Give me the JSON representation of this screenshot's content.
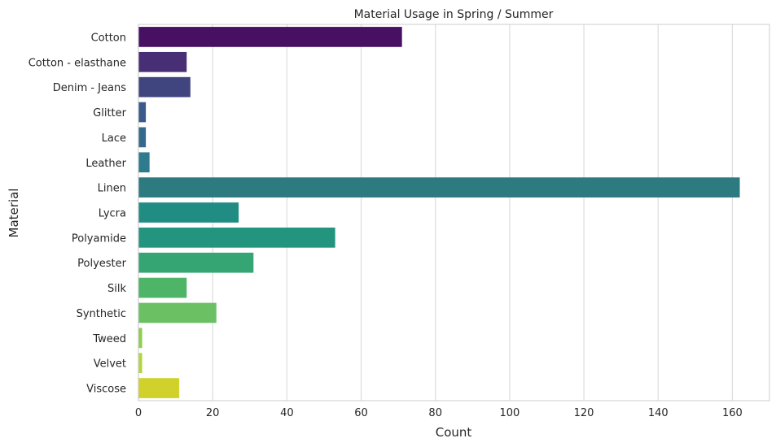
{
  "chart_data": {
    "type": "bar",
    "orientation": "horizontal",
    "title": "Material Usage in Spring / Summer",
    "xlabel": "Count",
    "ylabel": "Material",
    "xlim": [
      0,
      170
    ],
    "xticks": [
      0,
      20,
      40,
      60,
      80,
      100,
      120,
      140,
      160
    ],
    "grid": "vertical",
    "categories": [
      "Cotton",
      "Cotton - elasthane",
      "Denim - Jeans",
      "Glitter",
      "Lace",
      "Leather",
      "Linen",
      "Lycra",
      "Polyamide",
      "Polyester",
      "Silk",
      "Synthetic",
      "Tweed",
      "Velvet",
      "Viscose"
    ],
    "values": [
      71,
      13,
      14,
      2,
      2,
      3,
      162,
      27,
      53,
      31,
      13,
      21,
      1,
      1,
      11
    ],
    "colors": [
      "#471063",
      "#482f75",
      "#41457f",
      "#3a5a89",
      "#346b8c",
      "#2d7b8d",
      "#2d7a80",
      "#218c83",
      "#23957e",
      "#35a574",
      "#4db468",
      "#6cc064",
      "#8ccf4c",
      "#b0d63a",
      "#d0d12a"
    ]
  }
}
